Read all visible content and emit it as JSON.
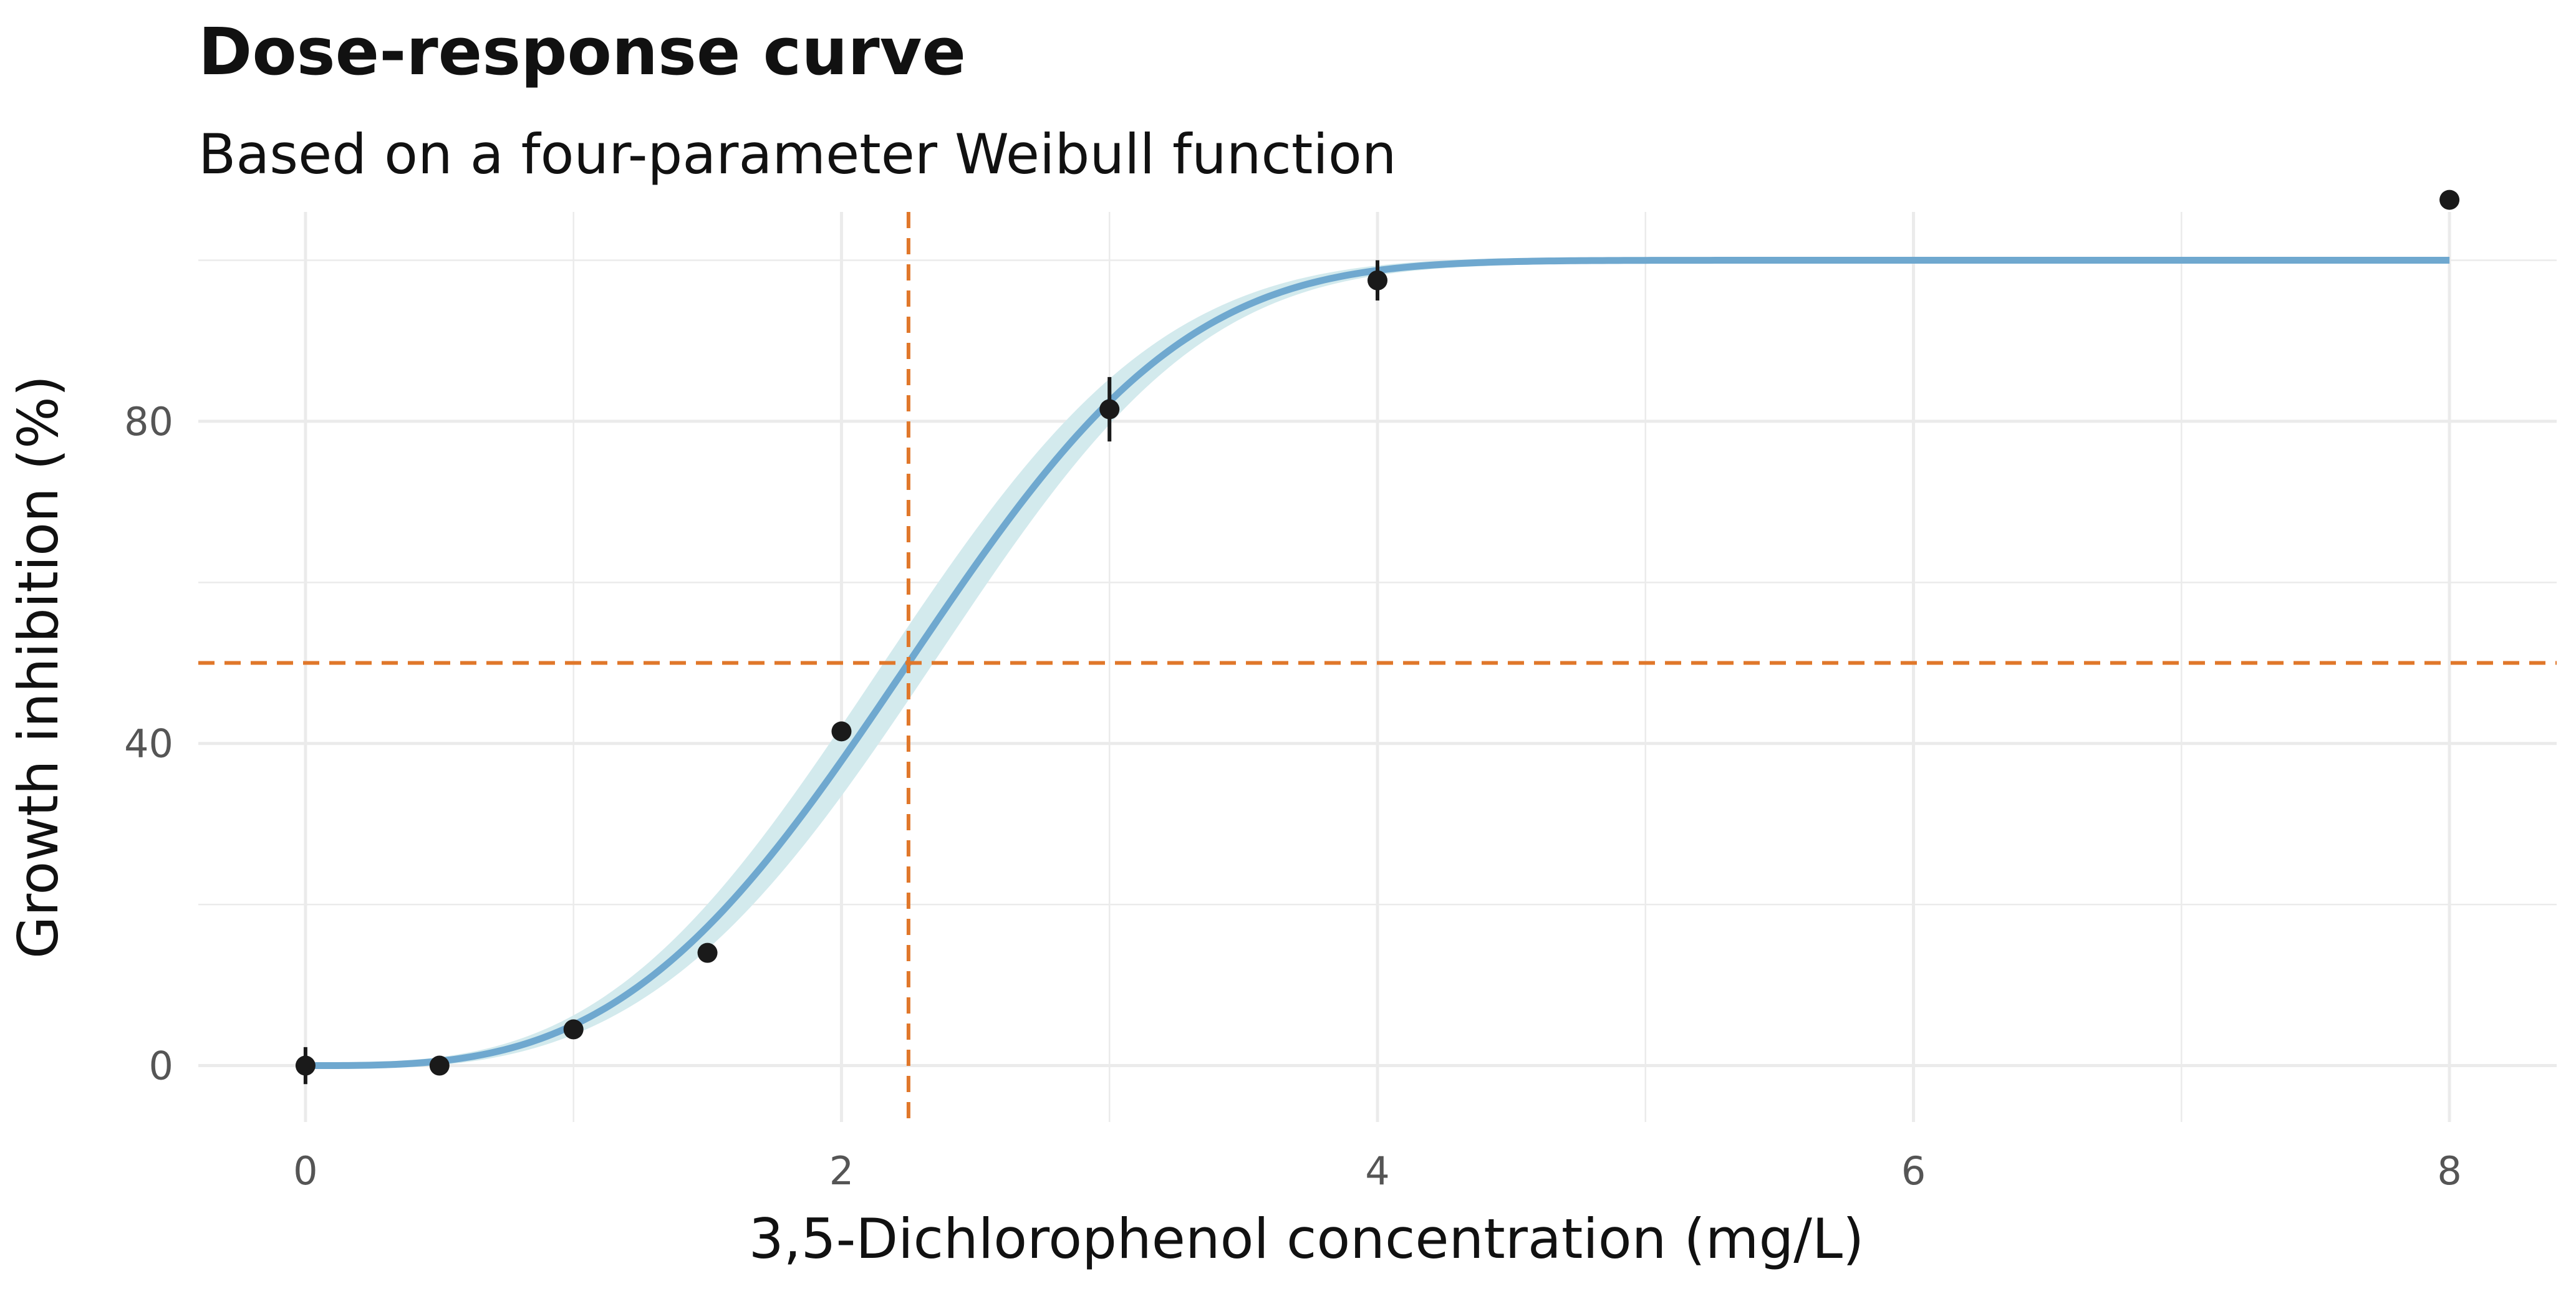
{
  "chart_data": {
    "type": "line",
    "title": "Dose-response curve",
    "subtitle": "Based on a four-parameter Weibull function",
    "xlabel": "3,5-Dichlorophenol concentration (mg/L)",
    "ylabel": "Growth inhibition (%)",
    "xlim": [
      -0.4,
      8.4
    ],
    "ylim": [
      -7,
      106
    ],
    "x_ticks": [
      0,
      2,
      4,
      6,
      8
    ],
    "x_tick_labels": [
      "0",
      "2",
      "4",
      "6",
      "8"
    ],
    "y_ticks": [
      0,
      40,
      80
    ],
    "y_tick_labels": [
      "0",
      "40",
      "80"
    ],
    "grid": true,
    "fit": {
      "model": "four-parameter Weibull",
      "lower": 0,
      "upper": 100,
      "ec50": 2.25,
      "shape": 3.2,
      "x_max": 8,
      "band_halfwidth": 3
    },
    "reference_lines": {
      "x": 2.25,
      "y": 50
    },
    "points": [
      {
        "x": 0,
        "y": 0,
        "err": 2.3
      },
      {
        "x": 0.5,
        "y": 0,
        "err": 0
      },
      {
        "x": 1,
        "y": 4.5,
        "err": 0
      },
      {
        "x": 1.5,
        "y": 14,
        "err": 0
      },
      {
        "x": 2,
        "y": 41.5,
        "err": 0
      },
      {
        "x": 3,
        "y": 81.5,
        "err": 4
      },
      {
        "x": 4,
        "y": 97.5,
        "err": 2.5
      },
      {
        "x": 8,
        "y": 107.5,
        "err": 0
      }
    ]
  },
  "colors": {
    "curve": "#6fa8cf",
    "band": "#d3eaed",
    "reference": "#e0772a",
    "points": "#1a1a1a",
    "grid": "#ebebeb",
    "tick_text": "#555555"
  }
}
